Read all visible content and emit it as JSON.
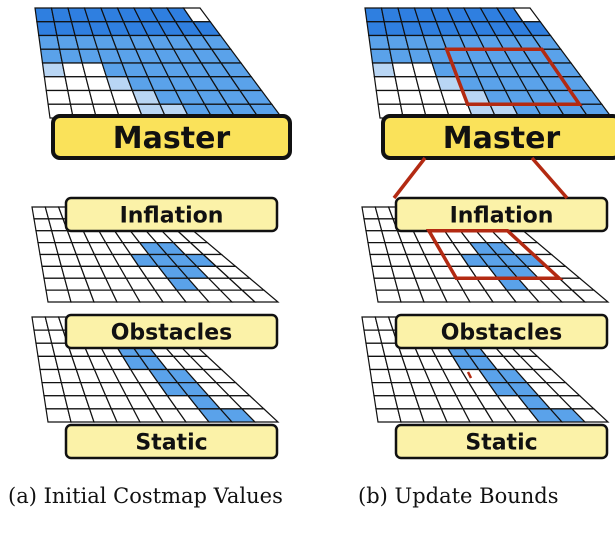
{
  "panels": [
    {
      "id": "a",
      "caption": "(a) Initial Costmap Values",
      "layers": [
        {
          "name": "Master"
        },
        {
          "name": "Inflation"
        },
        {
          "name": "Obstacles"
        },
        {
          "name": "Static"
        }
      ]
    },
    {
      "id": "b",
      "caption": "(b) Update Bounds",
      "layers": [
        {
          "name": "Master"
        },
        {
          "name": "Inflation"
        },
        {
          "name": "Obstacles"
        },
        {
          "name": "Static"
        }
      ]
    }
  ],
  "colors": {
    "label_fill": "#fbf2a8",
    "master_fill": "#fae25a",
    "cost_lethal": "#2f7fe0",
    "cost_high": "#5aa2ea",
    "cost_low": "#b9d6f4",
    "free": "#ffffff",
    "grid_line": "#111111",
    "bounds": "#b32a12"
  },
  "grids": {
    "master": [
      [
        2,
        2,
        2,
        2,
        2,
        2,
        2,
        2,
        2,
        0
      ],
      [
        2,
        2,
        2,
        2,
        2,
        2,
        2,
        2,
        2,
        2
      ],
      [
        1,
        1,
        1,
        1,
        1,
        1,
        1,
        1,
        1,
        1
      ],
      [
        1,
        1,
        1,
        1,
        1,
        1,
        1,
        1,
        1,
        1
      ],
      [
        3,
        0,
        0,
        1,
        1,
        1,
        1,
        1,
        1,
        1
      ],
      [
        0,
        0,
        0,
        3,
        1,
        1,
        1,
        1,
        1,
        1
      ],
      [
        0,
        0,
        0,
        0,
        3,
        1,
        1,
        1,
        1,
        1
      ],
      [
        0,
        0,
        0,
        0,
        3,
        3,
        1,
        1,
        1,
        1
      ]
    ],
    "inflation": [
      [
        0,
        0,
        0,
        0,
        0,
        0,
        0,
        0,
        0,
        0
      ],
      [
        0,
        0,
        0,
        0,
        0,
        0,
        0,
        0,
        0,
        0
      ],
      [
        0,
        0,
        0,
        0,
        0,
        0,
        0,
        0,
        0,
        0
      ],
      [
        0,
        0,
        0,
        0,
        0,
        0,
        1,
        1,
        0,
        0
      ],
      [
        0,
        0,
        0,
        0,
        0,
        1,
        1,
        1,
        1,
        0
      ],
      [
        0,
        0,
        0,
        0,
        0,
        0,
        1,
        1,
        0,
        0
      ],
      [
        0,
        0,
        0,
        0,
        0,
        0,
        1,
        0,
        0,
        0
      ],
      [
        0,
        0,
        0,
        0,
        0,
        0,
        0,
        0,
        0,
        0
      ]
    ],
    "static": [
      [
        0,
        0,
        0,
        0,
        0,
        0,
        0,
        0,
        0,
        0
      ],
      [
        0,
        0,
        0,
        0,
        1,
        1,
        0,
        0,
        0,
        0
      ],
      [
        0,
        0,
        0,
        0,
        0,
        1,
        1,
        0,
        0,
        0
      ],
      [
        0,
        0,
        0,
        0,
        0,
        1,
        1,
        0,
        0,
        0
      ],
      [
        0,
        0,
        0,
        0,
        0,
        0,
        1,
        1,
        0,
        0
      ],
      [
        0,
        0,
        0,
        0,
        0,
        0,
        1,
        1,
        0,
        0
      ],
      [
        0,
        0,
        0,
        0,
        0,
        0,
        0,
        1,
        0,
        0
      ],
      [
        0,
        0,
        0,
        0,
        0,
        0,
        0,
        1,
        1,
        0
      ]
    ]
  }
}
